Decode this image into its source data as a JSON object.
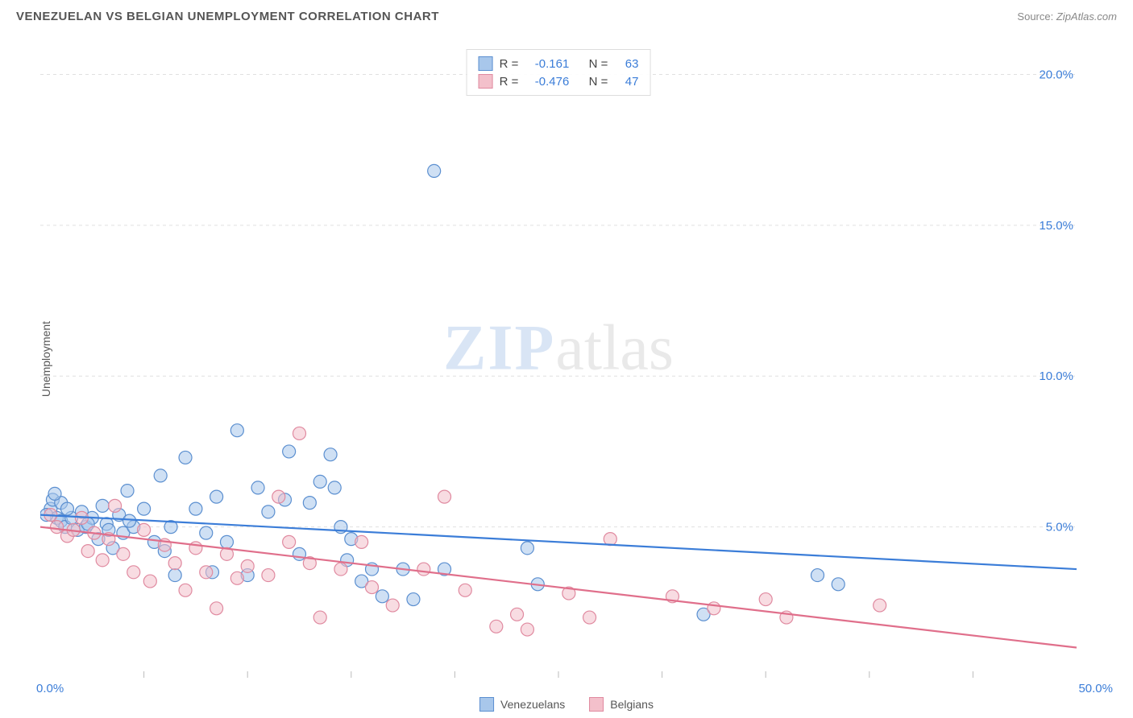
{
  "title": "VENEZUELAN VS BELGIAN UNEMPLOYMENT CORRELATION CHART",
  "source_prefix": "Source:",
  "source": "ZipAtlas.com",
  "ylabel": "Unemployment",
  "watermark_a": "ZIP",
  "watermark_b": "atlas",
  "chart": {
    "type": "scatter",
    "xlim": [
      0,
      50
    ],
    "ylim": [
      0,
      21
    ],
    "x_min_label": "0.0%",
    "x_max_label": "50.0%",
    "x_ticks": [
      5,
      10,
      15,
      20,
      25,
      30,
      35,
      40,
      45
    ],
    "y_ticks": [
      {
        "v": 5.0,
        "label": "5.0%"
      },
      {
        "v": 10.0,
        "label": "10.0%"
      },
      {
        "v": 15.0,
        "label": "15.0%"
      },
      {
        "v": 20.0,
        "label": "20.0%"
      }
    ],
    "grid_color": "#e0e0e0",
    "background_color": "#ffffff",
    "axis_label_color": "#3b7dd8",
    "series": [
      {
        "name": "Venezuelans",
        "fill": "#a8c7eb",
        "stroke": "#5b8fd0",
        "line_color": "#3b7dd8",
        "R": "-0.161",
        "N": "63",
        "trend": {
          "x1": 0,
          "y1": 5.4,
          "x2": 50,
          "y2": 3.6
        },
        "points": [
          [
            0.5,
            5.6
          ],
          [
            0.8,
            5.3
          ],
          [
            0.6,
            5.9
          ],
          [
            1.0,
            5.2
          ],
          [
            1.2,
            5.0
          ],
          [
            1.0,
            5.8
          ],
          [
            0.7,
            6.1
          ],
          [
            1.5,
            5.3
          ],
          [
            1.8,
            4.9
          ],
          [
            2.0,
            5.5
          ],
          [
            2.2,
            5.0
          ],
          [
            2.5,
            5.3
          ],
          [
            2.8,
            4.6
          ],
          [
            3.0,
            5.7
          ],
          [
            3.2,
            5.1
          ],
          [
            3.5,
            4.3
          ],
          [
            3.8,
            5.4
          ],
          [
            4.0,
            4.8
          ],
          [
            4.2,
            6.2
          ],
          [
            4.5,
            5.0
          ],
          [
            5.0,
            5.6
          ],
          [
            5.5,
            4.5
          ],
          [
            5.8,
            6.7
          ],
          [
            6.0,
            4.2
          ],
          [
            6.5,
            3.4
          ],
          [
            7.0,
            7.3
          ],
          [
            7.5,
            5.6
          ],
          [
            8.0,
            4.8
          ],
          [
            8.5,
            6.0
          ],
          [
            8.3,
            3.5
          ],
          [
            9.5,
            8.2
          ],
          [
            9.0,
            4.5
          ],
          [
            10.5,
            6.3
          ],
          [
            10.0,
            3.4
          ],
          [
            11.0,
            5.5
          ],
          [
            11.8,
            5.9
          ],
          [
            12.0,
            7.5
          ],
          [
            12.5,
            4.1
          ],
          [
            13.0,
            5.8
          ],
          [
            13.5,
            6.5
          ],
          [
            14.0,
            7.4
          ],
          [
            14.2,
            6.3
          ],
          [
            14.5,
            5.0
          ],
          [
            14.8,
            3.9
          ],
          [
            15.0,
            4.6
          ],
          [
            15.5,
            3.2
          ],
          [
            16.0,
            3.6
          ],
          [
            16.5,
            2.7
          ],
          [
            17.5,
            3.6
          ],
          [
            18.0,
            2.6
          ],
          [
            19.0,
            16.8
          ],
          [
            19.5,
            3.6
          ],
          [
            23.5,
            4.3
          ],
          [
            24.0,
            3.1
          ],
          [
            32.0,
            2.1
          ],
          [
            37.5,
            3.4
          ],
          [
            38.5,
            3.1
          ],
          [
            0.3,
            5.4
          ],
          [
            1.3,
            5.6
          ],
          [
            2.3,
            5.1
          ],
          [
            3.3,
            4.9
          ],
          [
            4.3,
            5.2
          ],
          [
            6.3,
            5.0
          ]
        ]
      },
      {
        "name": "Belgians",
        "fill": "#f3c0cb",
        "stroke": "#e08aa0",
        "line_color": "#e06f8b",
        "R": "-0.476",
        "N": "47",
        "trend": {
          "x1": 0,
          "y1": 5.0,
          "x2": 50,
          "y2": 1.0
        },
        "points": [
          [
            0.5,
            5.4
          ],
          [
            0.8,
            5.0
          ],
          [
            1.3,
            4.7
          ],
          [
            1.6,
            4.9
          ],
          [
            2.0,
            5.3
          ],
          [
            2.3,
            4.2
          ],
          [
            2.6,
            4.8
          ],
          [
            3.0,
            3.9
          ],
          [
            3.3,
            4.6
          ],
          [
            3.6,
            5.7
          ],
          [
            4.0,
            4.1
          ],
          [
            4.5,
            3.5
          ],
          [
            5.0,
            4.9
          ],
          [
            5.3,
            3.2
          ],
          [
            6.0,
            4.4
          ],
          [
            6.5,
            3.8
          ],
          [
            7.0,
            2.9
          ],
          [
            7.5,
            4.3
          ],
          [
            8.0,
            3.5
          ],
          [
            8.5,
            2.3
          ],
          [
            9.0,
            4.1
          ],
          [
            9.5,
            3.3
          ],
          [
            10.0,
            3.7
          ],
          [
            11.0,
            3.4
          ],
          [
            11.5,
            6.0
          ],
          [
            12.0,
            4.5
          ],
          [
            12.5,
            8.1
          ],
          [
            13.0,
            3.8
          ],
          [
            13.5,
            2.0
          ],
          [
            14.5,
            3.6
          ],
          [
            15.5,
            4.5
          ],
          [
            16.0,
            3.0
          ],
          [
            17.0,
            2.4
          ],
          [
            18.5,
            3.6
          ],
          [
            19.5,
            6.0
          ],
          [
            20.5,
            2.9
          ],
          [
            22.0,
            1.7
          ],
          [
            23.0,
            2.1
          ],
          [
            23.5,
            1.6
          ],
          [
            25.5,
            2.8
          ],
          [
            26.5,
            2.0
          ],
          [
            27.5,
            4.6
          ],
          [
            30.5,
            2.7
          ],
          [
            32.5,
            2.3
          ],
          [
            35.0,
            2.6
          ],
          [
            40.5,
            2.4
          ],
          [
            36.0,
            2.0
          ]
        ]
      }
    ]
  },
  "legend_stats_labels": {
    "R": "R =",
    "N": "N ="
  }
}
